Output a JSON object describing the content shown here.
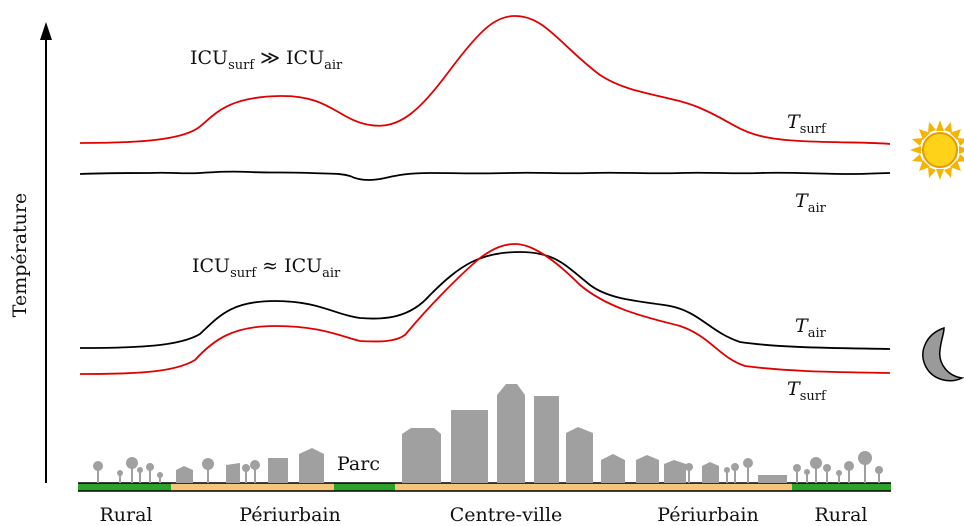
{
  "axis": {
    "ylabel": "Température"
  },
  "day": {
    "relation": {
      "main": "ICU",
      "sub1": "surf",
      "op": "≫",
      "sub2": "air"
    },
    "curve_surf": {
      "letter": "T",
      "sub": "surf"
    },
    "curve_air": {
      "letter": "T",
      "sub": "air"
    },
    "icon": "sun-icon"
  },
  "night": {
    "relation": {
      "main": "ICU",
      "sub1": "surf",
      "op": "≈",
      "sub2": "air"
    },
    "curve_air": {
      "letter": "T",
      "sub": "air"
    },
    "curve_surf": {
      "letter": "T",
      "sub": "surf"
    },
    "icon": "moon-icon"
  },
  "park_label": "Parc",
  "zones": [
    "Rural",
    "Périurbain",
    "Centre-ville",
    "Périurbain",
    "Rural"
  ],
  "colors": {
    "surf": "#e00000",
    "air": "#000000",
    "building": "#a0a0a0",
    "rural_ground": "#2ba32b",
    "urban_ground": "#f5c57a",
    "sun": "#ffd21a",
    "moon": "#9a9a9a"
  }
}
